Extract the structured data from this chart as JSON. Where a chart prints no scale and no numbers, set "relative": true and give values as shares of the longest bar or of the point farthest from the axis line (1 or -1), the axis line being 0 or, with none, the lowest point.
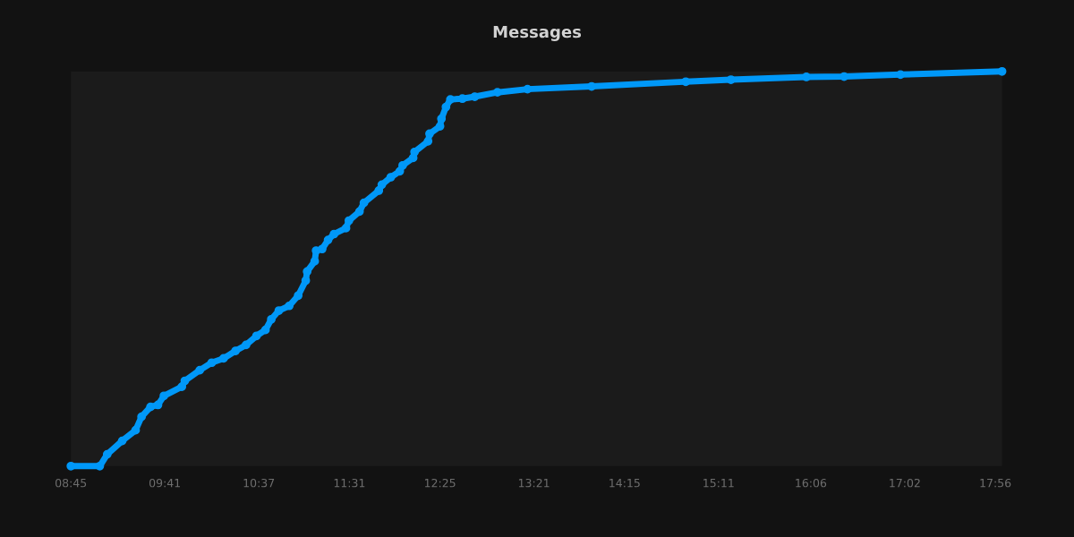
{
  "chart_data": {
    "type": "line",
    "title": "Messages",
    "relative": true,
    "x": [
      8.75,
      9.037,
      9.111,
      9.26,
      9.393,
      9.452,
      9.541,
      9.615,
      9.674,
      9.852,
      9.882,
      10.03,
      10.149,
      10.267,
      10.386,
      10.49,
      10.594,
      10.683,
      10.741,
      10.816,
      10.919,
      11.008,
      11.083,
      11.097,
      11.172,
      11.186,
      11.246,
      11.305,
      11.364,
      11.483,
      11.512,
      11.617,
      11.661,
      11.809,
      11.839,
      11.928,
      12.017,
      12.046,
      12.15,
      12.164,
      12.298,
      12.313,
      12.417,
      12.431,
      12.476,
      12.52,
      12.639,
      12.762,
      12.987,
      13.286,
      13.923,
      14.858,
      15.307,
      16.056,
      16.431,
      16.991,
      18.0
    ],
    "series": [
      {
        "color": "#0098f8",
        "values": [
          0,
          0,
          0.03,
          0.064,
          0.091,
          0.125,
          0.15,
          0.155,
          0.178,
          0.201,
          0.216,
          0.243,
          0.262,
          0.273,
          0.292,
          0.307,
          0.33,
          0.345,
          0.372,
          0.394,
          0.406,
          0.432,
          0.47,
          0.493,
          0.519,
          0.546,
          0.55,
          0.573,
          0.588,
          0.603,
          0.622,
          0.645,
          0.667,
          0.698,
          0.713,
          0.732,
          0.747,
          0.762,
          0.781,
          0.796,
          0.823,
          0.842,
          0.861,
          0.88,
          0.91,
          0.929,
          0.931,
          0.936,
          0.947,
          0.955,
          0.962,
          0.974,
          0.979,
          0.986,
          0.987,
          0.992,
          1.0
        ]
      }
    ],
    "xlim": [
      8.75,
      18.0
    ],
    "xticks": [
      {
        "value": 8.75,
        "label": "08:45"
      },
      {
        "value": 9.6833,
        "label": "09:41"
      },
      {
        "value": 10.6167,
        "label": "10:37"
      },
      {
        "value": 11.5167,
        "label": "11:31"
      },
      {
        "value": 12.4167,
        "label": "12:25"
      },
      {
        "value": 13.35,
        "label": "13:21"
      },
      {
        "value": 14.25,
        "label": "14:15"
      },
      {
        "value": 15.1833,
        "label": "15:11"
      },
      {
        "value": 16.1,
        "label": "16:06"
      },
      {
        "value": 17.0333,
        "label": "17:02"
      },
      {
        "value": 17.9333,
        "label": "17:56"
      }
    ],
    "marker": "circle",
    "line_style": "solid"
  }
}
